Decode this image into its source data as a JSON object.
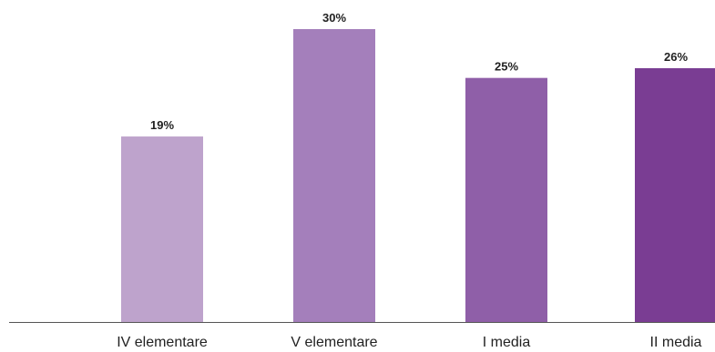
{
  "chart_data": {
    "type": "bar",
    "categories": [
      "IV elementare",
      "V elementare",
      "I media",
      "II media"
    ],
    "values": [
      19,
      30,
      25,
      26
    ],
    "value_labels": [
      "19%",
      "30%",
      "25%",
      "26%"
    ],
    "colors": [
      "#bea3cc",
      "#a47fbb",
      "#8f5fa8",
      "#7a3d93"
    ],
    "axis_color": "#555555",
    "ylim": [
      0,
      30
    ],
    "grid": false,
    "legend": "none"
  }
}
